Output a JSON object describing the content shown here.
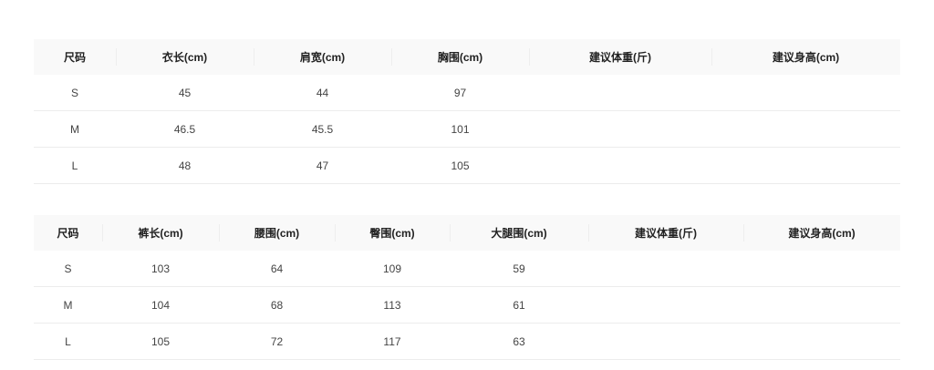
{
  "tops": {
    "headers": [
      "尺码",
      "衣长(cm)",
      "肩宽(cm)",
      "胸围(cm)",
      "建议体重(斤)",
      "建议身高(cm)"
    ],
    "rows": [
      [
        "S",
        "45",
        "44",
        "97",
        "",
        ""
      ],
      [
        "M",
        "46.5",
        "45.5",
        "101",
        "",
        ""
      ],
      [
        "L",
        "48",
        "47",
        "105",
        "",
        ""
      ]
    ]
  },
  "pants": {
    "headers": [
      "尺码",
      "裤长(cm)",
      "腰围(cm)",
      "臀围(cm)",
      "大腿围(cm)",
      "建议体重(斤)",
      "建议身高(cm)"
    ],
    "rows": [
      [
        "S",
        "103",
        "64",
        "109",
        "59",
        "",
        ""
      ],
      [
        "M",
        "104",
        "68",
        "113",
        "61",
        "",
        ""
      ],
      [
        "L",
        "105",
        "72",
        "117",
        "63",
        "",
        ""
      ]
    ]
  }
}
